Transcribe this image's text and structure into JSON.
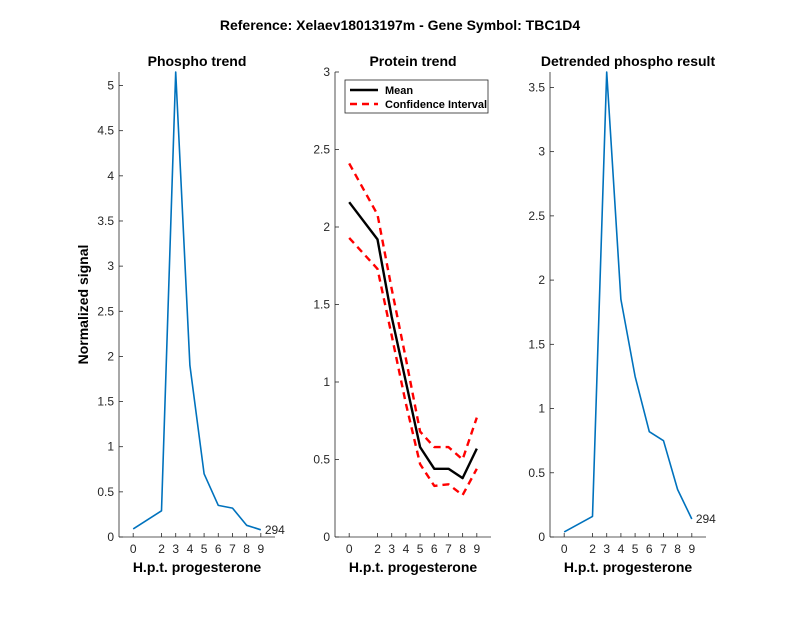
{
  "figure_title": "Reference:  Xelaev18013197m - Gene Symbol:  TBC1D4",
  "colors": {
    "phospho": "#0072BD",
    "mean": "#000000",
    "ci": "#FF0000",
    "axis": "#262626"
  },
  "chart_data": [
    {
      "type": "line",
      "title": "Phospho trend",
      "xlabel": "H.p.t. progesterone",
      "ylabel": "Normalized signal",
      "xlim": [
        -1,
        10
      ],
      "ylim": [
        0,
        5.15
      ],
      "xticks": [
        0,
        2,
        3,
        4,
        5,
        6,
        7,
        8,
        9
      ],
      "xtick_labels": [
        "0",
        "2",
        "3",
        "4",
        "5",
        "6",
        "7",
        "8",
        "9"
      ],
      "yticks": [
        0,
        0.5,
        1,
        1.5,
        2,
        2.5,
        3,
        3.5,
        4,
        4.5,
        5
      ],
      "ytick_labels": [
        "0",
        "0.5",
        "1",
        "1.5",
        "2",
        "2.5",
        "3",
        "3.5",
        "4",
        "4.5",
        "5"
      ],
      "series": [
        {
          "name": "Phospho",
          "x": [
            0,
            2,
            3,
            4,
            5,
            6,
            7,
            8,
            9
          ],
          "values": [
            0.09,
            0.29,
            5.15,
            1.9,
            0.7,
            0.35,
            0.32,
            0.13,
            0.08
          ]
        }
      ],
      "annotation": {
        "text": "294",
        "x": 9,
        "y": 0.08
      }
    },
    {
      "type": "line",
      "title": "Protein trend",
      "xlabel": "H.p.t. progesterone",
      "ylabel": "",
      "xlim": [
        -1,
        10
      ],
      "ylim": [
        0,
        3
      ],
      "xticks": [
        0,
        2,
        3,
        4,
        5,
        6,
        7,
        8,
        9
      ],
      "xtick_labels": [
        "0",
        "2",
        "3",
        "4",
        "5",
        "6",
        "7",
        "8",
        "9"
      ],
      "yticks": [
        0,
        0.5,
        1,
        1.5,
        2,
        2.5,
        3
      ],
      "ytick_labels": [
        "0",
        "0.5",
        "1",
        "1.5",
        "2",
        "2.5",
        "3"
      ],
      "legend": {
        "position": "top-right",
        "entries": [
          "Mean",
          "Confidence Interval"
        ]
      },
      "series": [
        {
          "name": "Mean",
          "style": "solid",
          "x": [
            0,
            2,
            3,
            4,
            5,
            6,
            7,
            8,
            9
          ],
          "values": [
            2.16,
            1.92,
            1.42,
            1.0,
            0.58,
            0.44,
            0.44,
            0.38,
            0.57
          ]
        },
        {
          "name": "Confidence Interval upper",
          "style": "dashed",
          "x": [
            0,
            2,
            3,
            4,
            5,
            6,
            7,
            8,
            9
          ],
          "values": [
            2.41,
            2.08,
            1.6,
            1.15,
            0.68,
            0.58,
            0.58,
            0.5,
            0.77
          ]
        },
        {
          "name": "Confidence Interval lower",
          "style": "dashed",
          "x": [
            0,
            2,
            3,
            4,
            5,
            6,
            7,
            8,
            9
          ],
          "values": [
            1.93,
            1.73,
            1.3,
            0.86,
            0.47,
            0.33,
            0.34,
            0.27,
            0.44
          ]
        }
      ]
    },
    {
      "type": "line",
      "title": "Detrended phospho result",
      "xlabel": "H.p.t. progesterone",
      "ylabel": "",
      "xlim": [
        -1,
        10
      ],
      "ylim": [
        0,
        3.62
      ],
      "xticks": [
        0,
        2,
        3,
        4,
        5,
        6,
        7,
        8,
        9
      ],
      "xtick_labels": [
        "0",
        "2",
        "3",
        "4",
        "5",
        "6",
        "7",
        "8",
        "9"
      ],
      "yticks": [
        0,
        0.5,
        1,
        1.5,
        2,
        2.5,
        3,
        3.5
      ],
      "ytick_labels": [
        "0",
        "0.5",
        "1",
        "1.5",
        "2",
        "2.5",
        "3",
        "3.5"
      ],
      "series": [
        {
          "name": "Detrended",
          "x": [
            0,
            2,
            3,
            4,
            5,
            6,
            7,
            8,
            9
          ],
          "values": [
            0.04,
            0.16,
            3.62,
            1.85,
            1.25,
            0.82,
            0.75,
            0.37,
            0.14
          ]
        }
      ],
      "annotation": {
        "text": "294",
        "x": 9,
        "y": 0.14
      }
    }
  ]
}
